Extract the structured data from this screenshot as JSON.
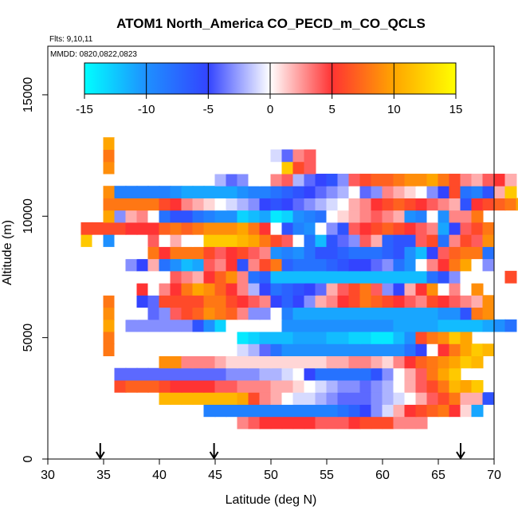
{
  "chart_data": {
    "type": "heatmap",
    "title": "ATOM1 North_America CO_PECD_m_CO_QCLS",
    "note_flights": "Flts: 9,10,11",
    "note_dates": "MMDD: 0820,0822,0823",
    "xlabel": "Latitude (deg N)",
    "ylabel": "Altitude (m)",
    "xlim": [
      30,
      70
    ],
    "ylim": [
      0,
      17000
    ],
    "x_ticks": [
      "30",
      "35",
      "40",
      "45",
      "50",
      "55",
      "60",
      "65",
      "70"
    ],
    "y_ticks": [
      "0",
      "5000",
      "10000",
      "15000"
    ],
    "colorbar": {
      "min": -15,
      "max": 15,
      "ticks": [
        "-15",
        "-10",
        "-5",
        "0",
        "5",
        "10",
        "15"
      ],
      "colors": [
        "#00ffff",
        "#1e90ff",
        "#3344ff",
        "#ffffff",
        "#ff3333",
        "#ffa500",
        "#ffff00"
      ]
    },
    "arrow_latitudes": [
      34.7,
      44.9,
      67.0
    ],
    "cell_width_deg": 1,
    "cell_height_m": 500,
    "rows": [
      {
        "alt": 1500,
        "x0": 47,
        "v": [
          3,
          4,
          5,
          5,
          5,
          5,
          5,
          4,
          4,
          4,
          5,
          6,
          6,
          6,
          3,
          3,
          3
        ]
      },
      {
        "alt": 2000,
        "x0": 44,
        "v": [
          -9,
          -9,
          -9,
          -9,
          -9,
          -9,
          -9,
          -9,
          -9,
          -9,
          -9,
          -9,
          -8,
          -7,
          -5,
          -3,
          -1,
          2,
          5,
          6,
          7,
          8,
          5,
          1,
          -11
        ]
      },
      {
        "alt": 2500,
        "x0": 40,
        "v": [
          11,
          11,
          11,
          11,
          11,
          11,
          11,
          10,
          6,
          3,
          2,
          0,
          -1,
          -1,
          -2,
          -3,
          -4,
          -4,
          -4,
          -3,
          -2,
          -1,
          0,
          2,
          4,
          6,
          8,
          2,
          2,
          -6
        ]
      },
      {
        "alt": 3000,
        "x0": 36,
        "v": [
          6,
          7,
          7,
          7,
          6,
          5,
          5,
          5,
          5,
          4,
          4,
          3,
          3,
          3,
          2,
          2,
          1,
          0,
          -1,
          -2,
          -3,
          -3,
          -4,
          -3,
          -2,
          0,
          2,
          4,
          6,
          8,
          11,
          10,
          12
        ]
      },
      {
        "alt": 3500,
        "x0": 36,
        "v": [
          -4,
          -4,
          -4,
          -4,
          -4,
          -4,
          -4,
          -4,
          -4,
          -4,
          -3,
          -3,
          -3,
          -2,
          -2,
          -1,
          0,
          -5,
          -8,
          -8,
          -8,
          -8,
          -8,
          -6,
          -3,
          0,
          2,
          4,
          8,
          10,
          12
        ]
      },
      {
        "alt": 4000,
        "x0": 40,
        "v": [
          9,
          9,
          3,
          3,
          3,
          2,
          1,
          1,
          1,
          1,
          1,
          1,
          1,
          1,
          1,
          2,
          2,
          3,
          3,
          2,
          1,
          3,
          5,
          7,
          8,
          9,
          10,
          12,
          11
        ]
      },
      {
        "alt": 4500,
        "x0": 35,
        "v": [
          8,
          0,
          0,
          0,
          0,
          0,
          0,
          0,
          0,
          0,
          0,
          0,
          -1,
          -2,
          -4,
          -8,
          -10,
          -10,
          -10,
          -10,
          -10,
          -10,
          -10,
          -10,
          -10,
          -10,
          -10,
          -8,
          -5,
          0,
          5,
          8,
          10,
          12,
          11
        ]
      },
      {
        "alt": 5000,
        "x0": 35,
        "v": [
          8,
          0,
          0,
          0,
          0,
          0,
          0,
          0,
          0,
          0,
          0,
          0,
          -14,
          -13,
          -12,
          -12,
          -12,
          -11,
          -11,
          -11,
          -12,
          -12,
          -13,
          -13,
          -14,
          -14,
          -12,
          -10,
          6,
          8,
          9,
          12,
          10
        ]
      },
      {
        "alt": 5500,
        "x0": 35,
        "v": [
          10,
          0,
          -3,
          -3,
          -3,
          -3,
          -3,
          -3,
          -6,
          -10,
          -13,
          0,
          0,
          0,
          0,
          0,
          -10,
          -10,
          -10,
          -10,
          -10,
          -10,
          -10,
          -10,
          -10,
          -10,
          -11,
          -11,
          -11,
          -11,
          -12,
          -12,
          -12,
          -12,
          -11,
          -10,
          -8
        ]
      },
      {
        "alt": 6000,
        "x0": 35,
        "v": [
          9,
          0,
          0,
          0,
          -4,
          -3,
          4,
          6,
          7,
          9,
          8,
          7,
          3,
          -3,
          -3,
          0,
          -9,
          -11,
          -11,
          -11,
          -11,
          -11,
          -11,
          -11,
          -11,
          -11,
          -11,
          -11,
          -11,
          -11,
          -10,
          -10,
          -6,
          8,
          9
        ]
      },
      {
        "alt": 6500,
        "x0": 35,
        "v": [
          8,
          0,
          0,
          -5,
          -4,
          6,
          6,
          6,
          6,
          8,
          8,
          6,
          5,
          4,
          3,
          -5,
          -7,
          -5,
          -3,
          2,
          3,
          5,
          6,
          8,
          7,
          6,
          5,
          4,
          3,
          6,
          5,
          4,
          3,
          2,
          9
        ]
      },
      {
        "alt": 7000,
        "x0": 35,
        "v": [
          0,
          0,
          0,
          5,
          0,
          3,
          5,
          8,
          10,
          9,
          7,
          5,
          3,
          -2,
          -5,
          -8,
          -7,
          -6,
          -5,
          -4,
          2,
          4,
          6,
          8,
          4,
          -3,
          -5,
          2,
          5,
          9,
          0,
          3,
          0,
          9
        ]
      },
      {
        "alt": 7500,
        "x0": 37,
        "v": [
          0,
          0,
          0,
          0,
          4,
          3,
          2,
          5,
          7,
          9,
          3,
          -8,
          -7,
          -12,
          -12,
          -12,
          -12,
          -12,
          -12,
          -12,
          -12,
          -12,
          -12,
          -12,
          -12,
          -12,
          -12,
          -8,
          -6,
          -3,
          0,
          0,
          0,
          0,
          6
        ]
      },
      {
        "alt": 8000,
        "x0": 35,
        "v": [
          0,
          0,
          -3,
          -5,
          2,
          -8,
          -10,
          -12,
          -11,
          4,
          3,
          5,
          -6,
          3,
          6,
          8,
          -7,
          -8,
          -8,
          -8,
          -7,
          -6,
          -5,
          -5,
          -4,
          -3,
          -8,
          -10,
          0,
          3,
          5,
          8,
          10,
          0,
          -3
        ]
      },
      {
        "alt": 8500,
        "x0": 35,
        "v": [
          0,
          0,
          0,
          0,
          8,
          5,
          8,
          8,
          8,
          6,
          4,
          5,
          6,
          4,
          3,
          -10,
          -9,
          -10,
          -8,
          -6,
          -6,
          -7,
          -8,
          -8,
          -8,
          -7,
          -6,
          -10,
          -12,
          -5,
          4,
          7,
          8,
          8,
          -8
        ]
      },
      {
        "alt": 9000,
        "x0": 33,
        "v": [
          12,
          0,
          -10,
          0,
          0,
          0,
          4,
          0,
          2,
          0,
          0,
          12,
          12,
          12,
          11,
          10,
          8,
          6,
          4,
          0,
          -8,
          -12,
          -6,
          -4,
          -3,
          4,
          2,
          -7,
          -6,
          -6,
          4,
          6,
          -8,
          3,
          6,
          4,
          9
        ]
      },
      {
        "alt": 9500,
        "x0": 33,
        "v": [
          6,
          6,
          6,
          6,
          5,
          5,
          5,
          7,
          8,
          7,
          8,
          9,
          9,
          9,
          10,
          8,
          5,
          0,
          -6,
          -9,
          -10,
          0,
          -3,
          -6,
          4,
          5,
          6,
          7,
          6,
          5,
          4,
          3,
          -11,
          -5,
          4,
          6,
          8
        ]
      },
      {
        "alt": 10000,
        "x0": 35,
        "v": [
          10,
          -3,
          2,
          3,
          0,
          -8,
          -6,
          -6,
          -8,
          -9,
          -10,
          -10,
          -13,
          -12,
          -11,
          -14,
          -13,
          -10,
          -9,
          -8,
          0,
          1,
          2,
          3,
          4,
          3,
          2,
          -10,
          -9,
          0,
          -10,
          3,
          3,
          8
        ]
      },
      {
        "alt": 10500,
        "x0": 35,
        "v": [
          8,
          8,
          8,
          8,
          8,
          6,
          5,
          3,
          2,
          1,
          0,
          -1,
          -2,
          -3,
          -5,
          -6,
          -5,
          -4,
          -3,
          -2,
          -1,
          0,
          2,
          3,
          5,
          6,
          7,
          6,
          5,
          4,
          3,
          2,
          -6,
          5,
          6,
          7,
          8,
          10
        ]
      },
      {
        "alt": 11000,
        "x0": 35,
        "v": [
          9,
          -9,
          -9,
          -9,
          -9,
          -9,
          -10,
          -11,
          -11,
          -11,
          -11,
          -11,
          -10,
          -9,
          -9,
          -8,
          -7,
          -6,
          -5,
          -4,
          -3,
          -2,
          0,
          -4,
          -3,
          3,
          2,
          1,
          0,
          -3,
          -5,
          6,
          -8,
          -9,
          -6,
          2,
          12
        ]
      },
      {
        "alt": 11500,
        "x0": 45,
        "v": [
          -2,
          -4,
          -3,
          0,
          0,
          3,
          4,
          -2,
          -4,
          -5,
          -6,
          -3,
          4,
          6,
          7,
          7,
          8,
          9,
          9,
          10,
          8,
          6,
          3,
          2,
          4,
          5,
          2
        ]
      },
      {
        "alt": 12000,
        "x0": 35,
        "v": [
          9,
          0,
          0,
          0,
          0,
          0,
          0,
          0,
          0,
          0,
          0,
          0,
          0,
          0,
          0,
          0,
          12,
          6,
          4
        ]
      },
      {
        "alt": 12500,
        "x0": 35,
        "v": [
          8,
          0,
          0,
          0,
          0,
          0,
          0,
          0,
          0,
          0,
          0,
          0,
          0,
          0,
          0,
          -1,
          -4,
          3,
          4
        ]
      },
      {
        "alt": 13000,
        "x0": 35,
        "v": [
          10,
          0
        ]
      }
    ]
  }
}
